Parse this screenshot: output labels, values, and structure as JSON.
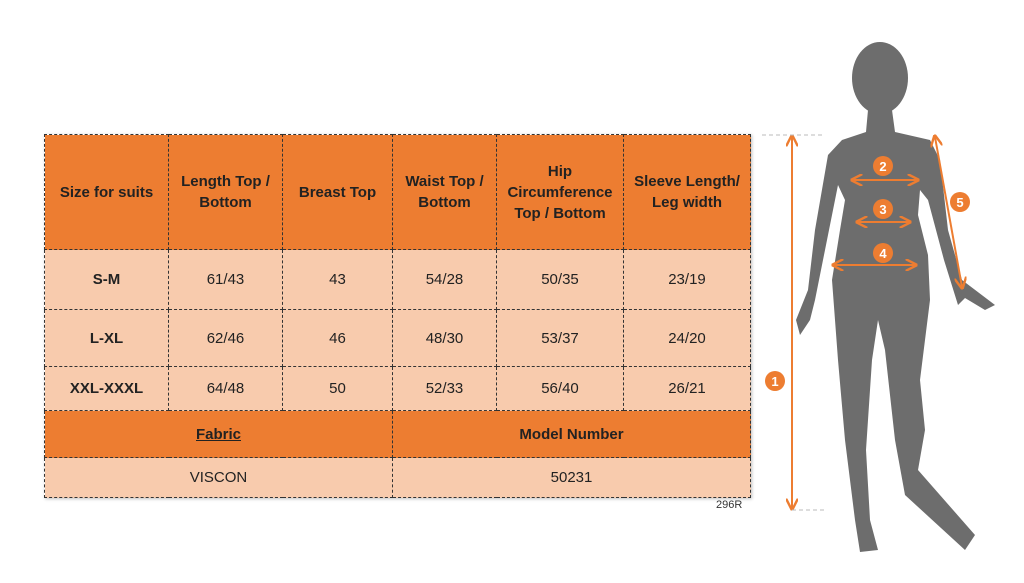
{
  "table": {
    "headers": [
      "Size for suits",
      "Length Top / Bottom",
      "Breast Top",
      "Waist Top / Bottom",
      "Hip Circumference Top / Bottom",
      "Sleeve Length/ Leg width"
    ],
    "rows": [
      [
        "S-M",
        "61/43",
        "43",
        "54/28",
        "50/35",
        "23/19"
      ],
      [
        "L-XL",
        "62/46",
        "46",
        "48/30",
        "53/37",
        "24/20"
      ],
      [
        "XXL-XXXL",
        "64/48",
        "50",
        "52/33",
        "56/40",
        "26/21"
      ]
    ],
    "fabric_label": "Fabric",
    "model_label": "Model Number",
    "fabric_value": "VISCON",
    "model_value": "50231"
  },
  "code": "296R",
  "figure": {
    "markers": [
      "1",
      "2",
      "3",
      "4",
      "5"
    ],
    "accent": "#ed7d31",
    "silhouette": "#6d6d6d"
  }
}
